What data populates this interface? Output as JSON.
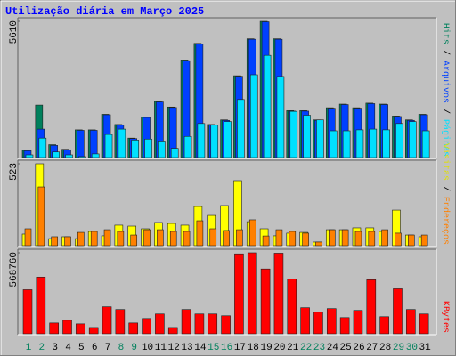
{
  "chart_data": {
    "type": "bar",
    "title": "Utilização diária em Março 2025",
    "title_color": "#0000ff",
    "categories": [
      "1",
      "2",
      "3",
      "4",
      "5",
      "6",
      "7",
      "8",
      "9",
      "10",
      "11",
      "12",
      "13",
      "14",
      "15",
      "16",
      "17",
      "18",
      "19",
      "20",
      "21",
      "22",
      "23",
      "24",
      "25",
      "26",
      "27",
      "28",
      "29",
      "30",
      "31"
    ],
    "category_colors": [
      "#00805c",
      "#00805c",
      "#000000",
      "#000000",
      "#000000",
      "#000000",
      "#000000",
      "#00805c",
      "#00805c",
      "#000000",
      "#000000",
      "#000000",
      "#000000",
      "#000000",
      "#00805c",
      "#00805c",
      "#000000",
      "#000000",
      "#000000",
      "#000000",
      "#000000",
      "#00805c",
      "#00805c",
      "#000000",
      "#000000",
      "#000000",
      "#000000",
      "#000000",
      "#00805c",
      "#00805c",
      "#000000"
    ],
    "separator": "/",
    "panels": [
      {
        "ylim": [
          0,
          5610
        ],
        "yticks": [
          5610
        ],
        "series": [
          {
            "name": "Hits",
            "color": "#00805c",
            "values": [
              300,
              2160,
              530,
              340,
              1140,
              1140,
              1780,
              1360,
              800,
              1670,
              2310,
              2080,
              4020,
              4700,
              1360,
              1550,
              3370,
              4890,
              5610,
              4890,
              1930,
              1930,
              1550,
              2050,
              2200,
              2050,
              2240,
              2200,
              1710,
              1550,
              1780
            ]
          },
          {
            "name": "Arquivos",
            "color": "#0040ff",
            "values": [
              280,
              1170,
              500,
              320,
              1120,
              1120,
              1760,
              1340,
              780,
              1650,
              2290,
              2060,
              3990,
              4680,
              1340,
              1530,
              3350,
              4870,
              5590,
              4870,
              1910,
              1910,
              1530,
              2030,
              2180,
              2030,
              2220,
              2180,
              1690,
              1530,
              1760
            ]
          },
          {
            "name": "Páginas",
            "color": "#00e0ff",
            "values": [
              110,
              800,
              230,
              110,
              40,
              150,
              950,
              1170,
              720,
              760,
              680,
              380,
              870,
              1400,
              1330,
              1480,
              2390,
              3410,
              4210,
              3340,
              1900,
              1740,
              1550,
              1100,
              1100,
              1140,
              1170,
              1140,
              1400,
              1480,
              1100
            ]
          }
        ]
      },
      {
        "ylim": [
          0,
          523
        ],
        "yticks": [
          523
        ],
        "series": [
          {
            "name": "Visitas",
            "color": "#ffff00",
            "values": [
              74,
              523,
              45,
              57,
              45,
              91,
              63,
              131,
              125,
              108,
              148,
              142,
              131,
              250,
              193,
              256,
              415,
              153,
              108,
              63,
              80,
              85,
              23,
              102,
              102,
              114,
              114,
              91,
              227,
              68,
              57
            ]
          },
          {
            "name": "Endereços",
            "color": "#ff8000",
            "values": [
              108,
              375,
              57,
              57,
              85,
              91,
              102,
              91,
              68,
              102,
              102,
              91,
              91,
              159,
              108,
              97,
              102,
              165,
              62,
              102,
              91,
              80,
              23,
              102,
              102,
              91,
              91,
              102,
              80,
              68,
              68
            ]
          }
        ]
      },
      {
        "ylim": [
          0,
          568760
        ],
        "yticks": [
          568760
        ],
        "series": [
          {
            "name": "KBytes",
            "color": "#ff0000",
            "values": [
              309680,
              398160,
              75840,
              94800,
              69520,
              44240,
              189600,
              170640,
              75840,
              107440,
              139040,
              44240,
              170640,
              139040,
              139040,
              126400,
              561200,
              568760,
              455040,
              566000,
              385520,
              183280,
              151680,
              176960,
              113760,
              164320,
              379200,
              120080,
              316000,
              170640,
              139040
            ]
          }
        ]
      }
    ]
  }
}
